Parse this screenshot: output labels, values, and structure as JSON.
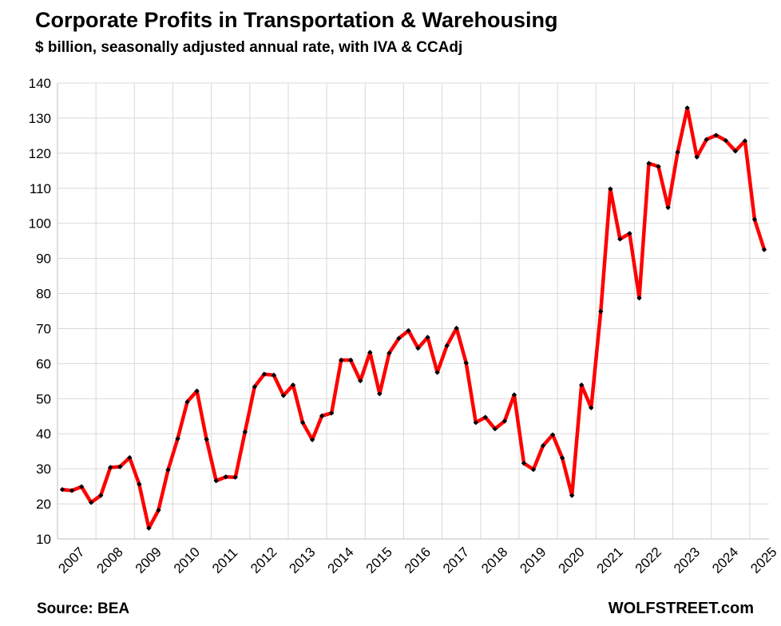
{
  "chart_data": {
    "type": "line",
    "title": "Corporate Profits in Transportation & Warehousing",
    "subtitle": "$ billion, seasonally adjusted annual rate, with IVA & CCAdj",
    "xlabel": "",
    "ylabel": "",
    "ylim": [
      10,
      140
    ],
    "yticks": [
      10,
      20,
      30,
      40,
      50,
      60,
      70,
      80,
      90,
      100,
      110,
      120,
      130,
      140
    ],
    "year_labels": [
      "2007",
      "2008",
      "2009",
      "2010",
      "2011",
      "2012",
      "2013",
      "2014",
      "2015",
      "2016",
      "2017",
      "2018",
      "2019",
      "2020",
      "2021",
      "2022",
      "2023",
      "2024",
      "2025"
    ],
    "grid": true,
    "legend": "none",
    "line_color": "#ff0000",
    "marker_color": "#000000",
    "series": [
      {
        "x": [
          "2007 Q1",
          "2007 Q2",
          "2007 Q3",
          "2007 Q4",
          "2008 Q1",
          "2008 Q2",
          "2008 Q3",
          "2008 Q4",
          "2009 Q1",
          "2009 Q2",
          "2009 Q3",
          "2009 Q4",
          "2010 Q1",
          "2010 Q2",
          "2010 Q3",
          "2010 Q4",
          "2011 Q1",
          "2011 Q2",
          "2011 Q3",
          "2011 Q4",
          "2012 Q1",
          "2012 Q2",
          "2012 Q3",
          "2012 Q4",
          "2013 Q1",
          "2013 Q2",
          "2013 Q3",
          "2013 Q4",
          "2014 Q1",
          "2014 Q2",
          "2014 Q3",
          "2014 Q4",
          "2015 Q1",
          "2015 Q2",
          "2015 Q3",
          "2015 Q4",
          "2016 Q1",
          "2016 Q2",
          "2016 Q3",
          "2016 Q4",
          "2017 Q1",
          "2017 Q2",
          "2017 Q3",
          "2017 Q4",
          "2018 Q1",
          "2018 Q2",
          "2018 Q3",
          "2018 Q4",
          "2019 Q1",
          "2019 Q2",
          "2019 Q3",
          "2019 Q4",
          "2020 Q1",
          "2020 Q2",
          "2020 Q3",
          "2020 Q4",
          "2021 Q1",
          "2021 Q2",
          "2021 Q3",
          "2021 Q4",
          "2022 Q1",
          "2022 Q2",
          "2022 Q3",
          "2022 Q4",
          "2023 Q1",
          "2023 Q2",
          "2023 Q3",
          "2023 Q4",
          "2024 Q1",
          "2024 Q2",
          "2024 Q3",
          "2024 Q4",
          "2025 Q1",
          "2025 Q2"
        ],
        "values": [
          24.1,
          23.8,
          24.9,
          20.4,
          22.4,
          30.4,
          30.6,
          33.2,
          25.6,
          13.1,
          18.2,
          29.7,
          38.6,
          49.1,
          52.2,
          38.4,
          26.6,
          27.7,
          27.6,
          40.5,
          53.4,
          57.0,
          56.7,
          50.9,
          53.9,
          43.2,
          38.3,
          45.1,
          45.9,
          61.0,
          61.0,
          55.1,
          63.2,
          51.4,
          63.0,
          67.2,
          69.4,
          64.4,
          67.5,
          57.5,
          65.1,
          70.1,
          60.2,
          43.2,
          44.7,
          41.4,
          43.6,
          51.1,
          31.6,
          29.8,
          36.6,
          39.7,
          33.1,
          22.4,
          53.9,
          47.4,
          74.9,
          109.8,
          95.5,
          97.1,
          78.7,
          117.1,
          116.2,
          104.5,
          120.3,
          132.9,
          118.9,
          123.9,
          125.1,
          123.6,
          120.6,
          123.5,
          101.1,
          92.5
        ]
      }
    ]
  },
  "footer": {
    "source": "Source: BEA",
    "brand": "WOLFSTREET.com"
  }
}
